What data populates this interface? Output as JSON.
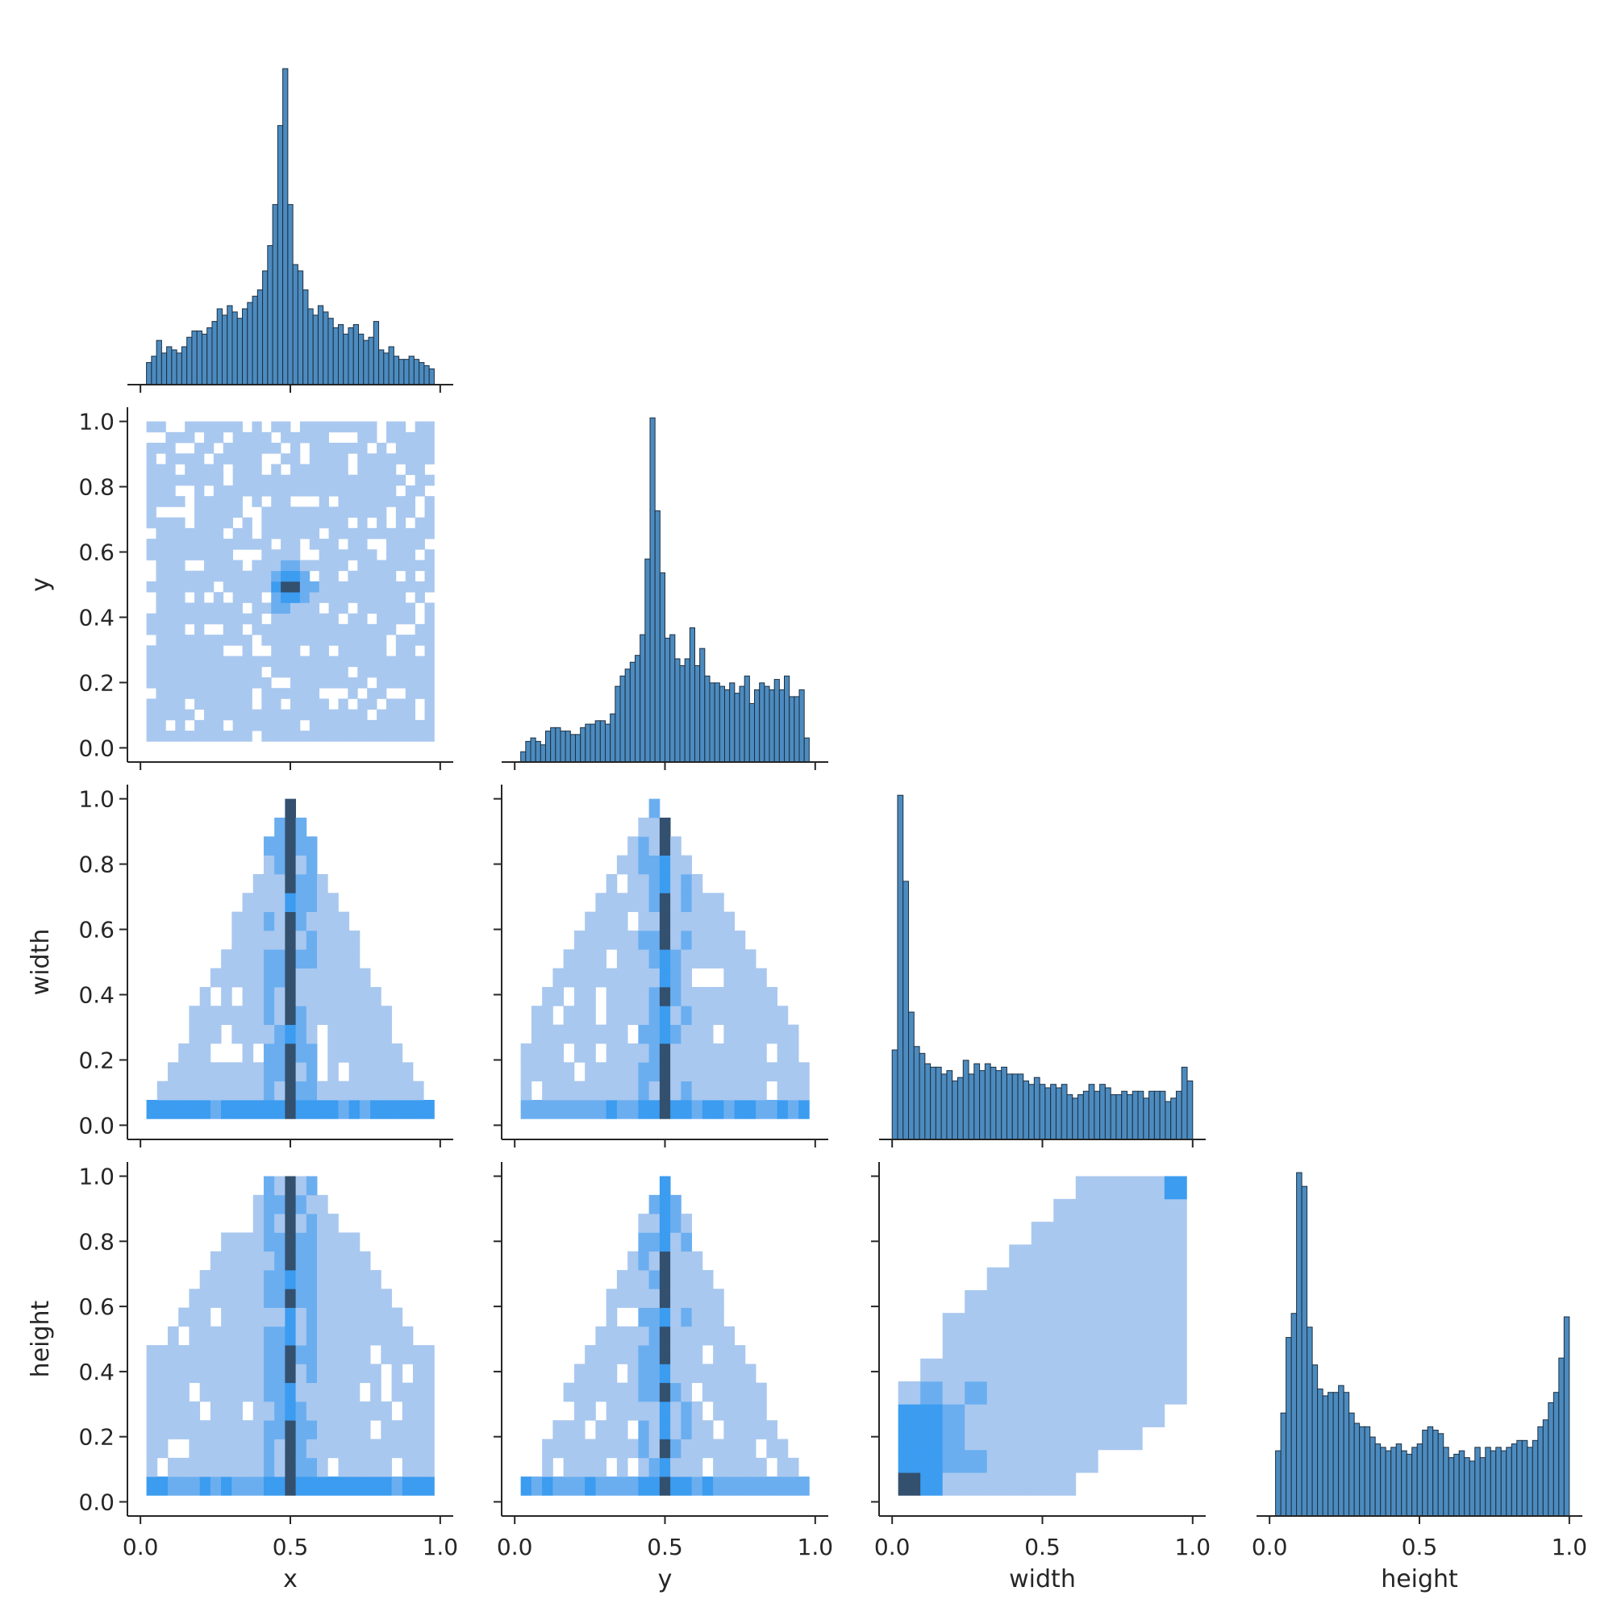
{
  "chart_data": {
    "type": "pairplot",
    "variables": [
      "x",
      "y",
      "width",
      "height"
    ],
    "axis_range": [
      0,
      1
    ],
    "x_ticks": [
      "0.0",
      "0.5",
      "1.0"
    ],
    "y_ticks": [
      "0.0",
      "0.2",
      "0.4",
      "0.6",
      "0.8",
      "1.0"
    ],
    "corner": true,
    "colors": {
      "bar": "#4c8bbf",
      "edge": "#1d2f40",
      "heat_light": "#a9c8ef",
      "heat_mid": "#3b9cf0",
      "heat_dark": "#33506e"
    },
    "histograms": [
      {
        "variable": "x",
        "bin_range": [
          0.02,
          0.98
        ],
        "counts": [
          7,
          9,
          14,
          10,
          12,
          11,
          10,
          12,
          15,
          17,
          17,
          16,
          18,
          20,
          24,
          22,
          25,
          23,
          21,
          24,
          26,
          28,
          30,
          36,
          44,
          57,
          82,
          100,
          57,
          38,
          36,
          30,
          24,
          22,
          25,
          23,
          21,
          18,
          19,
          16,
          18,
          19,
          16,
          14,
          15,
          20,
          11,
          10,
          12,
          9,
          8,
          8,
          9,
          8,
          7,
          6,
          5
        ]
      },
      {
        "variable": "y",
        "bin_range": [
          0.02,
          0.98
        ],
        "counts": [
          3,
          6,
          7,
          6,
          5,
          9,
          10,
          10,
          9,
          9,
          8,
          8,
          10,
          11,
          11,
          12,
          12,
          11,
          14,
          22,
          25,
          27,
          29,
          31,
          37,
          59,
          100,
          73,
          55,
          36,
          37,
          30,
          28,
          30,
          39,
          28,
          33,
          25,
          23,
          23,
          22,
          21,
          23,
          20,
          22,
          25,
          17,
          21,
          23,
          22,
          21,
          24,
          21,
          25,
          19,
          19,
          21,
          7
        ]
      },
      {
        "variable": "width",
        "bin_range": [
          0,
          1
        ],
        "counts": [
          26,
          100,
          75,
          37,
          27,
          25,
          22,
          21,
          21,
          19,
          20,
          17,
          18,
          23,
          19,
          22,
          20,
          22,
          21,
          20,
          21,
          19,
          19,
          19,
          17,
          16,
          18,
          16,
          15,
          16,
          15,
          16,
          13,
          12,
          13,
          14,
          16,
          14,
          16,
          15,
          13,
          13,
          14,
          13,
          14,
          14,
          12,
          14,
          14,
          14,
          11,
          12,
          14,
          21,
          17
        ]
      },
      {
        "variable": "height",
        "bin_range": [
          0.02,
          1
        ],
        "counts": [
          19,
          30,
          52,
          59,
          100,
          96,
          55,
          44,
          37,
          35,
          36,
          36,
          38,
          36,
          30,
          27,
          26,
          26,
          23,
          21,
          20,
          19,
          20,
          21,
          19,
          18,
          20,
          21,
          25,
          26,
          25,
          24,
          20,
          17,
          18,
          19,
          17,
          16,
          20,
          17,
          20,
          19,
          20,
          19,
          20,
          21,
          22,
          22,
          20,
          22,
          26,
          28,
          33,
          36,
          46,
          58
        ]
      }
    ],
    "heatmaps": [
      {
        "x": "x",
        "y": "y"
      },
      {
        "x": "x",
        "y": "width"
      },
      {
        "x": "y",
        "y": "width"
      },
      {
        "x": "x",
        "y": "height"
      },
      {
        "x": "y",
        "y": "height"
      },
      {
        "x": "width",
        "y": "height"
      }
    ]
  }
}
